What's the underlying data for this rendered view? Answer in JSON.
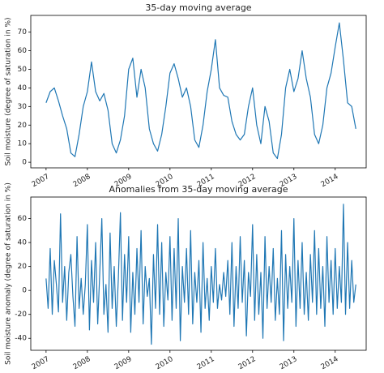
{
  "chart_data": [
    {
      "type": "line",
      "title": "35-day moving average",
      "ylabel": "Soil moisture (degree of saturation in %)",
      "color": "#1f77b4",
      "x": [
        2007,
        2007.1,
        2007.2,
        2007.3,
        2007.4,
        2007.5,
        2007.6,
        2007.7,
        2007.8,
        2007.9,
        2008,
        2008.1,
        2008.2,
        2008.3,
        2008.4,
        2008.5,
        2008.6,
        2008.7,
        2008.8,
        2008.9,
        2009,
        2009.1,
        2009.2,
        2009.3,
        2009.4,
        2009.5,
        2009.6,
        2009.7,
        2009.8,
        2009.9,
        2010,
        2010.1,
        2010.2,
        2010.3,
        2010.4,
        2010.5,
        2010.6,
        2010.7,
        2010.8,
        2010.9,
        2011,
        2011.1,
        2011.2,
        2011.3,
        2011.4,
        2011.5,
        2011.6,
        2011.7,
        2011.8,
        2011.9,
        2012,
        2012.1,
        2012.2,
        2012.3,
        2012.4,
        2012.5,
        2012.6,
        2012.7,
        2012.8,
        2012.9,
        2013,
        2013.1,
        2013.2,
        2013.3,
        2013.4,
        2013.5,
        2013.6,
        2013.7,
        2013.8,
        2013.9,
        2014,
        2014.1,
        2014.2,
        2014.3,
        2014.4,
        2014.5
      ],
      "values": [
        32,
        38,
        40,
        33,
        25,
        18,
        5,
        3,
        15,
        30,
        38,
        54,
        38,
        33,
        37,
        28,
        10,
        5,
        12,
        25,
        50,
        56,
        35,
        50,
        40,
        18,
        10,
        6,
        15,
        30,
        48,
        53,
        45,
        35,
        40,
        30,
        12,
        8,
        20,
        38,
        50,
        66,
        40,
        36,
        35,
        22,
        15,
        12,
        15,
        30,
        40,
        20,
        10,
        30,
        22,
        5,
        2,
        15,
        40,
        50,
        38,
        45,
        60,
        45,
        35,
        15,
        10,
        20,
        40,
        48,
        62,
        75,
        55,
        32,
        30,
        18
      ],
      "xlim": [
        2006.63,
        2014.75
      ],
      "xticks": [
        2007,
        2008,
        2009,
        2010,
        2011,
        2012,
        2013,
        2014
      ],
      "ylim": [
        -3,
        79
      ],
      "yticks": [
        0,
        10,
        20,
        30,
        40,
        50,
        60,
        70
      ]
    },
    {
      "type": "line",
      "title": "Anomalies from 35-day moving average",
      "ylabel": "Soil moisture anomaly (degree of saturation in %)",
      "color": "#1f77b4",
      "x": [
        2007,
        2007.05,
        2007.1,
        2007.15,
        2007.2,
        2007.25,
        2007.3,
        2007.35,
        2007.4,
        2007.45,
        2007.5,
        2007.55,
        2007.6,
        2007.65,
        2007.7,
        2007.75,
        2007.8,
        2007.85,
        2007.9,
        2007.95,
        2008,
        2008.05,
        2008.1,
        2008.15,
        2008.2,
        2008.25,
        2008.3,
        2008.35,
        2008.4,
        2008.45,
        2008.5,
        2008.55,
        2008.6,
        2008.65,
        2008.7,
        2008.75,
        2008.8,
        2008.85,
        2008.9,
        2008.95,
        2009,
        2009.05,
        2009.1,
        2009.15,
        2009.2,
        2009.25,
        2009.3,
        2009.35,
        2009.4,
        2009.45,
        2009.5,
        2009.55,
        2009.6,
        2009.65,
        2009.7,
        2009.75,
        2009.8,
        2009.85,
        2009.9,
        2009.95,
        2010,
        2010.05,
        2010.1,
        2010.15,
        2010.2,
        2010.25,
        2010.3,
        2010.35,
        2010.4,
        2010.45,
        2010.5,
        2010.55,
        2010.6,
        2010.65,
        2010.7,
        2010.75,
        2010.8,
        2010.85,
        2010.9,
        2010.95,
        2011,
        2011.05,
        2011.1,
        2011.15,
        2011.2,
        2011.25,
        2011.3,
        2011.35,
        2011.4,
        2011.45,
        2011.5,
        2011.55,
        2011.6,
        2011.65,
        2011.7,
        2011.75,
        2011.8,
        2011.85,
        2011.9,
        2011.95,
        2012,
        2012.05,
        2012.1,
        2012.15,
        2012.2,
        2012.25,
        2012.3,
        2012.35,
        2012.4,
        2012.45,
        2012.5,
        2012.55,
        2012.6,
        2012.65,
        2012.7,
        2012.75,
        2012.8,
        2012.85,
        2012.9,
        2012.95,
        2013,
        2013.05,
        2013.1,
        2013.15,
        2013.2,
        2013.25,
        2013.3,
        2013.35,
        2013.4,
        2013.45,
        2013.5,
        2013.55,
        2013.6,
        2013.65,
        2013.7,
        2013.75,
        2013.8,
        2013.85,
        2013.9,
        2013.95,
        2014,
        2014.05,
        2014.1,
        2014.15,
        2014.2,
        2014.25,
        2014.3,
        2014.35,
        2014.4,
        2014.45,
        2014.5
      ],
      "values": [
        10,
        -15,
        35,
        -20,
        25,
        5,
        -18,
        64,
        -10,
        20,
        -25,
        15,
        30,
        -5,
        -30,
        45,
        -15,
        10,
        -20,
        5,
        55,
        -33,
        25,
        -10,
        40,
        -28,
        15,
        60,
        -20,
        5,
        -35,
        48,
        -15,
        20,
        -30,
        10,
        65,
        -25,
        30,
        -10,
        45,
        -35,
        15,
        -20,
        35,
        -10,
        50,
        -28,
        20,
        -5,
        10,
        -45,
        30,
        -15,
        55,
        -20,
        40,
        -30,
        15,
        -8,
        45,
        -25,
        35,
        -15,
        60,
        -42,
        20,
        -10,
        35,
        -20,
        50,
        -28,
        15,
        -10,
        25,
        -35,
        40,
        -15,
        10,
        -25,
        20,
        -10,
        35,
        -15,
        5,
        -8,
        15,
        -5,
        25,
        -20,
        40,
        -30,
        20,
        -15,
        45,
        -10,
        25,
        -38,
        15,
        -5,
        55,
        -25,
        30,
        -20,
        15,
        -40,
        45,
        -15,
        20,
        -10,
        35,
        -25,
        10,
        -20,
        50,
        -42,
        30,
        -15,
        20,
        -10,
        60,
        -30,
        25,
        -15,
        40,
        -20,
        15,
        -25,
        30,
        -10,
        50,
        -20,
        35,
        -15,
        20,
        -30,
        45,
        -10,
        25,
        -20,
        35,
        -15,
        20,
        -10,
        72,
        -20,
        40,
        -15,
        25,
        -10,
        5
      ],
      "xlim": [
        2006.63,
        2014.75
      ],
      "xticks": [
        2007,
        2008,
        2009,
        2010,
        2011,
        2012,
        2013,
        2014
      ],
      "ylim": [
        -50,
        78
      ],
      "yticks": [
        -40,
        -20,
        0,
        20,
        40,
        60
      ]
    }
  ]
}
